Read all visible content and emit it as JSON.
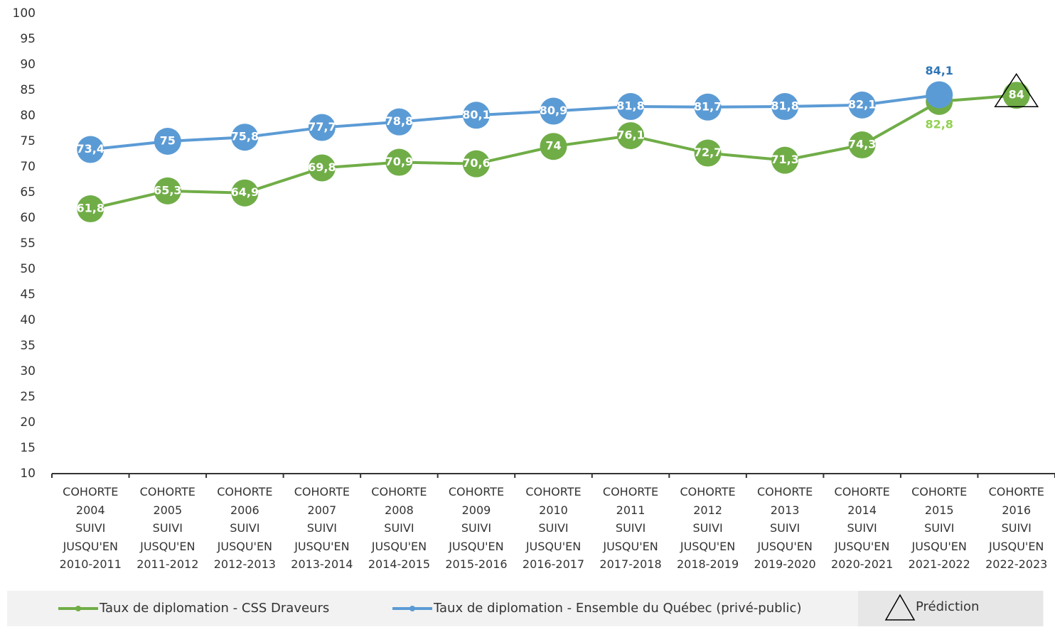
{
  "chart_data": {
    "type": "line",
    "categories": [
      "COHORTE\n2004\nSUIVI\nJUSQU'EN\n2010-2011",
      "COHORTE\n2005\nSUIVI\nJUSQU'EN\n2011-2012",
      "COHORTE\n2006\nSUIVI\nJUSQU'EN\n2012-2013",
      "COHORTE\n2007\nSUIVI\nJUSQU'EN\n2013-2014",
      "COHORTE\n2008\nSUIVI\nJUSQU'EN\n2014-2015",
      "COHORTE\n2009\nSUIVI\nJUSQU'EN\n2015-2016",
      "COHORTE\n2010\nSUIVI\nJUSQU'EN\n2016-2017",
      "COHORTE\n2011\nSUIVI\nJUSQU'EN\n2017-2018",
      "COHORTE\n2012\nSUIVI\nJUSQU'EN\n2018-2019",
      "COHORTE\n2013\nSUIVI\nJUSQU'EN\n2019-2020",
      "COHORTE\n2014\nSUIVI\nJUSQU'EN\n2020-2021",
      "COHORTE\n2015\nSUIVI\nJUSQU'EN\n2021-2022",
      "COHORTE\n2016\nSUIVI\nJUSQU'EN\n2022-2023"
    ],
    "series": [
      {
        "name": "Taux de diplomation - CSS Draveurs",
        "color": "#70ad47",
        "label_color": "#92d050",
        "values": [
          61.8,
          65.3,
          64.9,
          69.8,
          70.9,
          70.6,
          74,
          76.1,
          72.7,
          71.3,
          74.3,
          82.8,
          84
        ],
        "value_labels": [
          "61,8",
          "65,3",
          "64,9",
          "69,8",
          "70,9",
          "70,6",
          "74",
          "76,1",
          "72,7",
          "71,3",
          "74,3",
          "82,8",
          "84"
        ]
      },
      {
        "name": "Taux de diplomation - Ensemble du Québec (privé-public)",
        "color": "#5b9bd5",
        "label_color": "#2e75b6",
        "values": [
          73.4,
          75,
          75.8,
          77.7,
          78.8,
          80.1,
          80.9,
          81.8,
          81.7,
          81.8,
          82.1,
          84.1,
          null
        ],
        "value_labels": [
          "73,4",
          "75",
          "75,8",
          "77,7",
          "78,8",
          "80,1",
          "80,9",
          "81,8",
          "81,7",
          "81,8",
          "82,1",
          "84,1",
          null
        ]
      }
    ],
    "prediction_label": "Prédiction",
    "ylim": [
      10,
      100
    ],
    "yticks": [
      10,
      15,
      20,
      25,
      30,
      35,
      40,
      45,
      50,
      55,
      60,
      65,
      70,
      75,
      80,
      85,
      90,
      95,
      100
    ]
  }
}
